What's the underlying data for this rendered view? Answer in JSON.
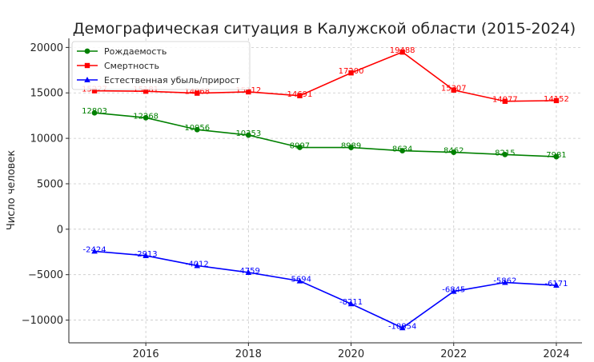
{
  "chart_data": {
    "type": "line",
    "title": "Демографическая ситуация в Калужской области (2015-2024)",
    "xlabel": "",
    "ylabel": "Число человек",
    "x": [
      2015,
      2016,
      2017,
      2018,
      2019,
      2020,
      2021,
      2022,
      2023,
      2024
    ],
    "xlim": [
      2014.5,
      2024.5
    ],
    "ylim": [
      -12500,
      21000
    ],
    "x_ticks": [
      2016,
      2018,
      2020,
      2022,
      2024
    ],
    "y_ticks": [
      -10000,
      -5000,
      0,
      5000,
      10000,
      15000,
      20000
    ],
    "grid": true,
    "legend_position": "top-left",
    "series": [
      {
        "name": "Рождаемость",
        "color": "#008000",
        "marker": "circle",
        "values": [
          12803,
          12268,
          10956,
          10353,
          8997,
          8989,
          8634,
          8462,
          8215,
          7981
        ],
        "labels": [
          "12803",
          "12268",
          "10956",
          "10353",
          "8997",
          "8989",
          "8634",
          "8462",
          "8215",
          "7981"
        ]
      },
      {
        "name": "Смертность",
        "color": "#ff0000",
        "marker": "square",
        "values": [
          15227,
          15181,
          14968,
          15112,
          14691,
          17200,
          19488,
          15307,
          14077,
          14152
        ],
        "labels": [
          "15227",
          "15181",
          "14968",
          "15112",
          "14691",
          "17200",
          "19488",
          "15307",
          "14077",
          "14152"
        ]
      },
      {
        "name": "Естественная убыль/прирост",
        "color": "#0000ff",
        "marker": "triangle",
        "values": [
          -2424,
          -2913,
          -4012,
          -4759,
          -5694,
          -8211,
          -10854,
          -6845,
          -5862,
          -6171
        ],
        "labels": [
          "-2424",
          "-2913",
          "-4012",
          "-4759",
          "-5694",
          "-8211",
          "-10854",
          "-6845",
          "-5862",
          "-6171"
        ]
      }
    ]
  }
}
